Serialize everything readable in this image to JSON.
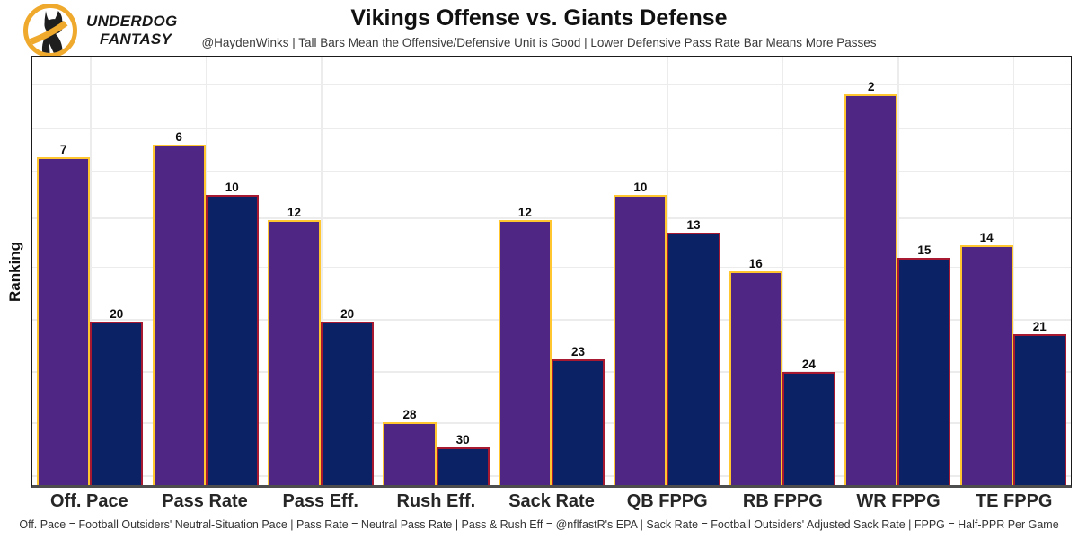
{
  "logo": {
    "line1": "UNDERDOG",
    "line2": "FANTASY"
  },
  "chart_data": {
    "type": "bar",
    "title": "Vikings Offense vs. Giants Defense",
    "subtitle": "@HaydenWinks | Tall Bars Mean the Offensive/Defensive Unit is Good | Lower Defensive Pass Rate Bar Means More Passes",
    "ylabel": "Ranking",
    "xlabel": "",
    "categories": [
      "Off. Pace",
      "Pass Rate",
      "Pass Eff.",
      "Rush Eff.",
      "Sack Rate",
      "QB FPPG",
      "RB FPPG",
      "WR FPPG",
      "TE FPPG"
    ],
    "series": [
      {
        "name": "Vikings Offense",
        "fill": "#4F2683",
        "border": "#FFC62F",
        "ranks": [
          7,
          6,
          12,
          28,
          12,
          10,
          16,
          2,
          14
        ]
      },
      {
        "name": "Giants Defense",
        "fill": "#0B2265",
        "border": "#A71930",
        "ranks": [
          20,
          10,
          20,
          30,
          23,
          13,
          24,
          15,
          21
        ]
      }
    ],
    "value_encoding": "NFL rank, 1 = best of 32; bar height = 33 - rank",
    "ylim": [
      0,
      34
    ],
    "grid": true,
    "legend": "none",
    "y_tick_labels": "none",
    "gridlines_y_pct": [
      6.4,
      16.6,
      26.6,
      37.6,
      49.0,
      61.3,
      73.4,
      85.4,
      97.7
    ]
  },
  "footer": {
    "text": "Off. Pace = Football Outsiders' Neutral-Situation Pace | Pass Rate = Neutral Pass Rate | Pass & Rush Eff = @nflfastR's EPA | Sack Rate = Football Outsiders' Adjusted Sack Rate | FPPG = Half-PPR Per Game"
  }
}
